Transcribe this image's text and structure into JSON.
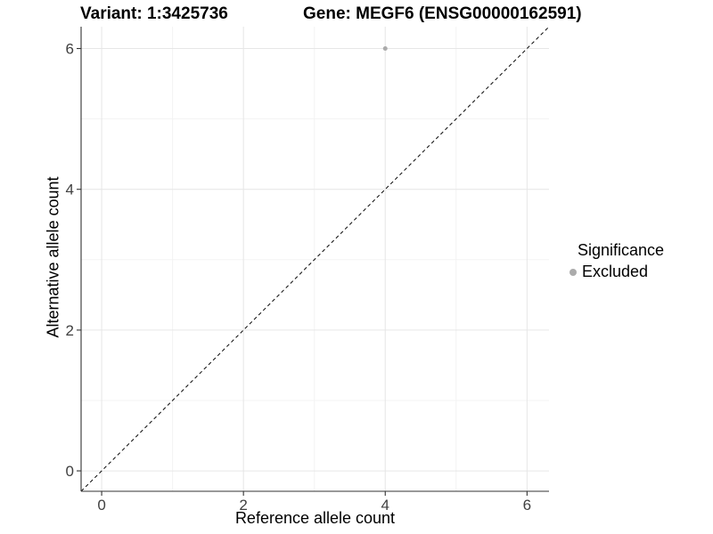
{
  "chart_data": {
    "type": "scatter",
    "title_left": "Variant: 1:3425736",
    "title_right": "Gene: MEGF6 (ENSG00000162591)",
    "xlabel": "Reference allele count",
    "ylabel": "Alternative allele count",
    "x_ticks": [
      0,
      2,
      4,
      6
    ],
    "y_ticks": [
      0,
      2,
      4,
      6
    ],
    "x_minor_ticks": [
      1,
      3,
      5
    ],
    "y_minor_ticks": [
      1,
      3,
      5
    ],
    "xlim": [
      -0.29,
      6.31
    ],
    "ylim": [
      -0.29,
      6.31
    ],
    "grid": true,
    "legend": {
      "position": "right",
      "title": "Significance",
      "items": [
        {
          "label": "Excluded",
          "color": "#ababab"
        }
      ]
    },
    "series": [
      {
        "name": "Excluded",
        "color": "#ababab",
        "points": [
          {
            "x": 4,
            "y": 6
          }
        ]
      }
    ],
    "reference_line": {
      "type": "identity",
      "style": "dashed",
      "color": "#111111"
    },
    "colors": {
      "grid_major": "#e6e6e6",
      "grid_minor": "#f3f3f3",
      "axis": "#333333",
      "point": "#ababab",
      "tick_label": "#404040"
    }
  }
}
